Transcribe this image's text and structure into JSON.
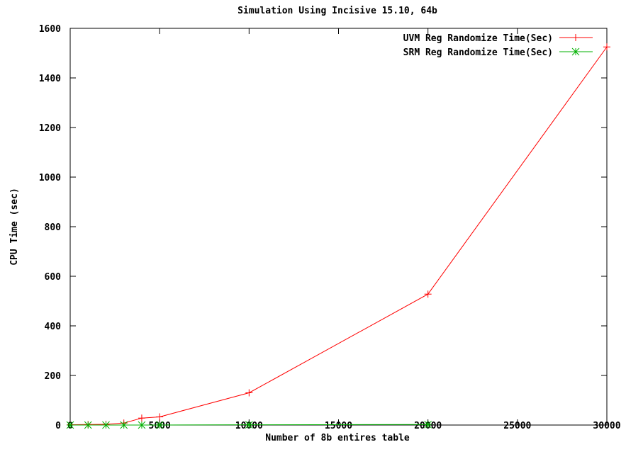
{
  "chart_data": {
    "type": "line",
    "title": "Simulation Using Incisive 15.10, 64b",
    "xlabel": "Number of 8b entires table",
    "ylabel": "CPU Time (sec)",
    "xlim": [
      0,
      30000
    ],
    "ylim": [
      0,
      1600
    ],
    "x_ticks": [
      0,
      5000,
      10000,
      15000,
      20000,
      25000,
      30000
    ],
    "x_tick_labels": [
      "0",
      "5000",
      "10000",
      "15000",
      "20000",
      "25000",
      "30000"
    ],
    "y_ticks": [
      0,
      200,
      400,
      600,
      800,
      1000,
      1200,
      1400,
      1600
    ],
    "y_tick_labels": [
      "0",
      "200",
      "400",
      "600",
      "800",
      "1000",
      "1200",
      "1400",
      "1600"
    ],
    "grid": false,
    "legend_position": "top-right",
    "series": [
      {
        "name": "UVM Reg Randomize Time(Sec)",
        "color": "#ff0000",
        "marker": "plus",
        "x": [
          0,
          1000,
          2000,
          3000,
          4000,
          5000,
          10000,
          20000,
          30000
        ],
        "y": [
          1,
          2,
          3,
          8,
          28,
          33,
          130,
          528,
          1525
        ]
      },
      {
        "name": "SRM Reg Randomize Time(Sec)",
        "color": "#00b000",
        "marker": "x-star",
        "x": [
          0,
          1000,
          2000,
          3000,
          4000,
          5000,
          10000,
          20000
        ],
        "y": [
          0,
          0,
          0,
          0,
          0,
          0,
          1,
          2
        ]
      }
    ]
  }
}
